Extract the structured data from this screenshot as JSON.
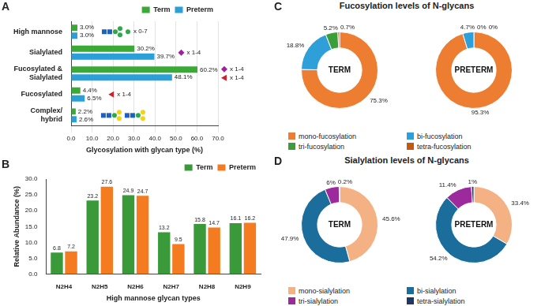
{
  "chart_data": [
    {
      "label": "A",
      "type": "bar",
      "orientation": "horizontal",
      "categories": [
        "High mannose",
        "Sialylated",
        "Fucosylated & Sialylated",
        "Fucosylated",
        "Complex/ hybrid"
      ],
      "series": [
        {
          "name": "Term",
          "color": "#3aa935",
          "values": [
            3.0,
            30.2,
            60.2,
            4.4,
            2.2
          ],
          "value_labels": [
            "3.0%",
            "30.2%",
            "60.2%",
            "4.4%",
            "2.2%"
          ]
        },
        {
          "name": "Preterm",
          "color": "#2b9fd8",
          "values": [
            3.0,
            39.7,
            48.1,
            6.5,
            2.6
          ],
          "value_labels": [
            "3.0%",
            "39.7%",
            "48.1%",
            "6.5%",
            "2.6%"
          ]
        }
      ],
      "x_label": "Glycosylation with glycan type (%)",
      "xlim": [
        0,
        70
      ],
      "xticks": [
        {
          "value": 0,
          "label": "0.0"
        },
        {
          "value": 10,
          "label": "10.0"
        },
        {
          "value": 20,
          "label": "20.0"
        },
        {
          "value": 30,
          "label": "30.0"
        },
        {
          "value": 40,
          "label": "40.0"
        },
        {
          "value": 50,
          "label": "50.0"
        },
        {
          "value": 60,
          "label": "60.0"
        },
        {
          "value": 70,
          "label": "70.0"
        }
      ],
      "annotations": [
        [
          "x 0-7"
        ],
        [
          "x 1-4"
        ],
        [
          "x 1-4",
          "x 1-4"
        ],
        [
          "x 1-4"
        ],
        []
      ],
      "legend": "top-right",
      "grid": true,
      "data_labels": true
    },
    {
      "label": "B",
      "type": "bar",
      "categories": [
        "N2H4",
        "N2H5",
        "N2H6",
        "N2H7",
        "N2H8",
        "N2H9"
      ],
      "series": [
        {
          "name": "Term",
          "color": "#3a9a3a",
          "values": [
            6.8,
            23.2,
            24.9,
            13.2,
            15.8,
            16.1
          ]
        },
        {
          "name": "Preterm",
          "color": "#f47b20",
          "values": [
            7.2,
            27.6,
            24.7,
            9.5,
            14.7,
            16.2
          ]
        }
      ],
      "x_label": "High mannose glycan types",
      "y_label": "Relative Abundance (%)",
      "ylim": [
        0,
        30
      ],
      "yticks": [
        {
          "value": 0,
          "label": "0.0"
        },
        {
          "value": 5,
          "label": "5.0"
        },
        {
          "value": 10,
          "label": "10.0"
        },
        {
          "value": 15,
          "label": "15.0"
        },
        {
          "value": 20,
          "label": "20.0"
        },
        {
          "value": 25,
          "label": "25.0"
        },
        {
          "value": 30,
          "label": "30.0"
        }
      ],
      "legend": "top-right",
      "grid": false,
      "data_labels": true
    },
    {
      "label": "C",
      "type": "doughnut",
      "title": "Fucosylation levels of N-glycans",
      "categories": [
        "mono-fucosylation",
        "bi-fucosylation",
        "tri-fucosylation",
        "tetra-fucosylation"
      ],
      "colors": [
        "#ed7d31",
        "#2e9fd8",
        "#3a9f3a",
        "#c65911"
      ],
      "series": [
        {
          "name": "TERM",
          "values": [
            75.3,
            18.8,
            5.2,
            0.7
          ],
          "value_labels": [
            "75.3%",
            "18.8%",
            "5.2%",
            "0.7%"
          ]
        },
        {
          "name": "PRETERM",
          "values": [
            95.3,
            4.7,
            0,
            0
          ],
          "value_labels": [
            "95.3%",
            "4.7%",
            "0%",
            "0%"
          ]
        }
      ],
      "legend": "bottom",
      "data_labels": true
    },
    {
      "label": "D",
      "type": "doughnut",
      "title": "Sialylation levels of N-glycans",
      "categories": [
        "mono-sialylation",
        "bi-sialylation",
        "tri-sialylation",
        "tetra-sialylation"
      ],
      "colors": [
        "#f4b183",
        "#1b6e9c",
        "#9c2a9c",
        "#1f3864"
      ],
      "series": [
        {
          "name": "TERM",
          "values": [
            45.6,
            47.9,
            6,
            0.2
          ],
          "value_labels": [
            "45.6%",
            "47.9%",
            "6%",
            "0.2%"
          ]
        },
        {
          "name": "PRETERM",
          "values": [
            33.4,
            54.2,
            11.4,
            1
          ],
          "value_labels": [
            "33.4%",
            "54.2%",
            "11.4%",
            "1%"
          ]
        }
      ],
      "legend": "bottom",
      "data_labels": true
    }
  ]
}
